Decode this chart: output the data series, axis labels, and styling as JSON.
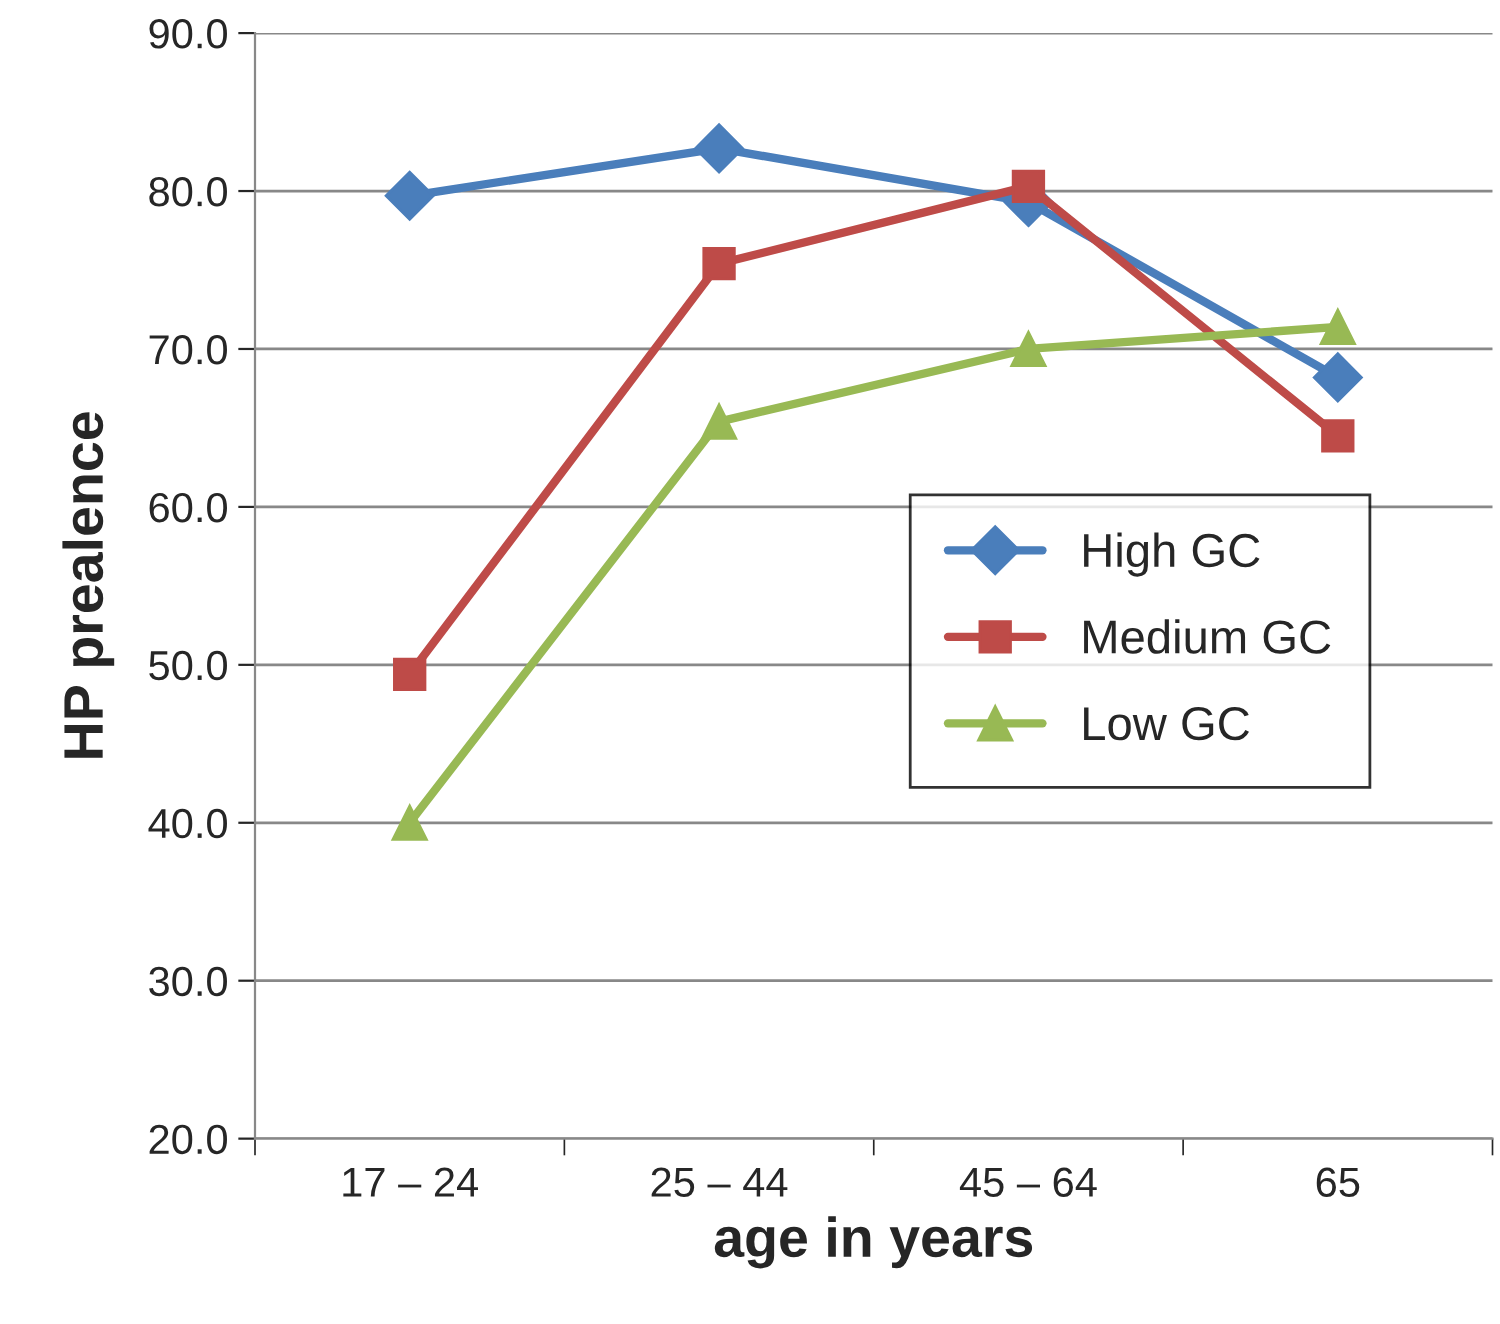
{
  "chart_data": {
    "type": "line",
    "xlabel": "age in years",
    "ylabel": "HP prealence",
    "categories": [
      "17 – 24",
      "25 – 44",
      "45 – 64",
      "65"
    ],
    "series": [
      {
        "name": "High GC",
        "color": "#4a7ebb",
        "marker": "diamond",
        "values": [
          79.7,
          82.7,
          79.3,
          68.2
        ]
      },
      {
        "name": "Medium GC",
        "color": "#be4b48",
        "marker": "square",
        "values": [
          49.4,
          75.4,
          80.3,
          64.5
        ]
      },
      {
        "name": "Low GC",
        "color": "#98b954",
        "marker": "triangle",
        "values": [
          40.0,
          65.4,
          70.0,
          71.4
        ]
      }
    ],
    "ylim": [
      20,
      90
    ],
    "yticks": [
      {
        "value": 20,
        "label": "20.0"
      },
      {
        "value": 30,
        "label": "30.0"
      },
      {
        "value": 40,
        "label": "40.0"
      },
      {
        "value": 50,
        "label": "50.0"
      },
      {
        "value": 60,
        "label": "60.0"
      },
      {
        "value": 70,
        "label": "70.0"
      },
      {
        "value": 80,
        "label": "80.0"
      },
      {
        "value": 90,
        "label": "90.0"
      }
    ],
    "grid": "y",
    "legend": "right",
    "line_style": "solid"
  }
}
